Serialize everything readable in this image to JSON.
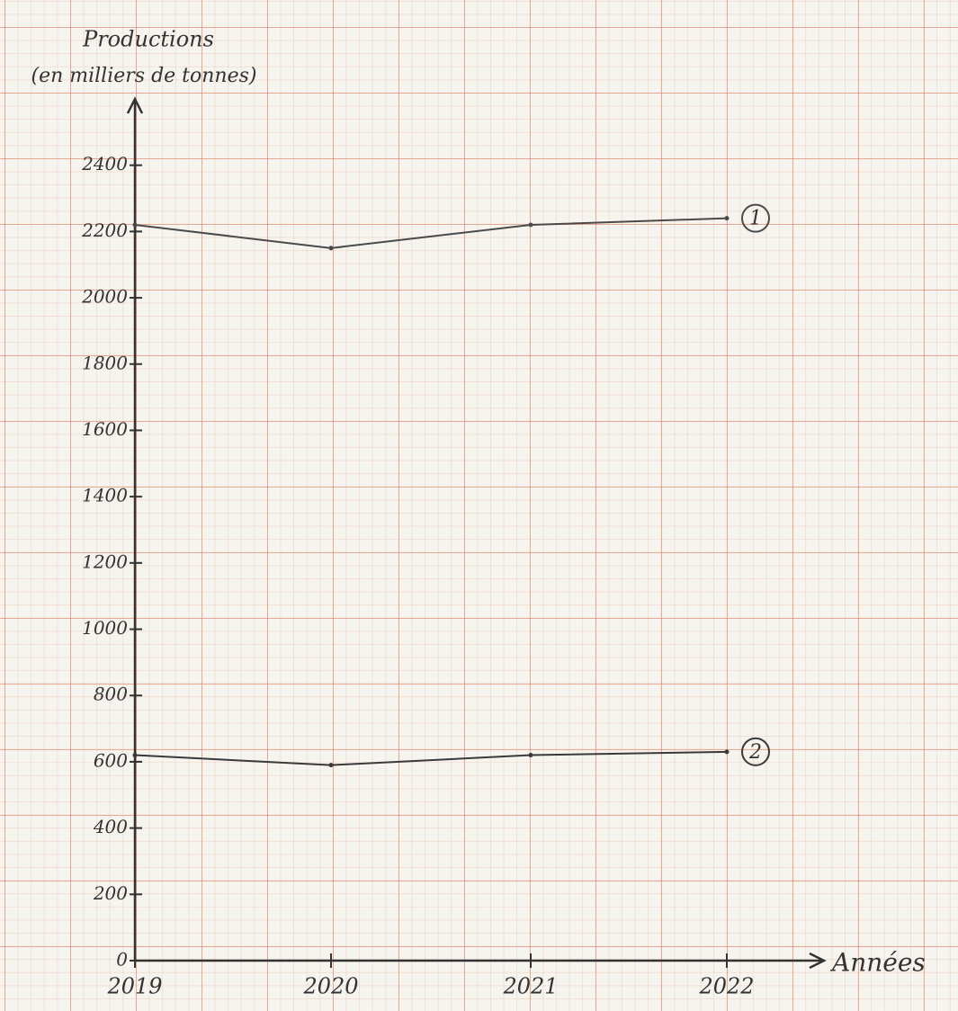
{
  "chart_data": {
    "type": "line",
    "y_label": "Productions",
    "y_label_unit": "(en milliers de tonnes)",
    "x_label": "Années",
    "categories": [
      "2019",
      "2020",
      "2021",
      "2022"
    ],
    "series": [
      {
        "name": "1",
        "color": "#4a4a4a",
        "values": [
          2220,
          2150,
          2220,
          2240
        ]
      },
      {
        "name": "2",
        "color": "#3a3a3a",
        "values": [
          620,
          590,
          620,
          630
        ]
      }
    ],
    "ylim": [
      0,
      2600
    ],
    "yticks": [
      0,
      200,
      400,
      600,
      800,
      1000,
      1200,
      1400,
      1600,
      1800,
      2000,
      2200,
      2400
    ]
  }
}
